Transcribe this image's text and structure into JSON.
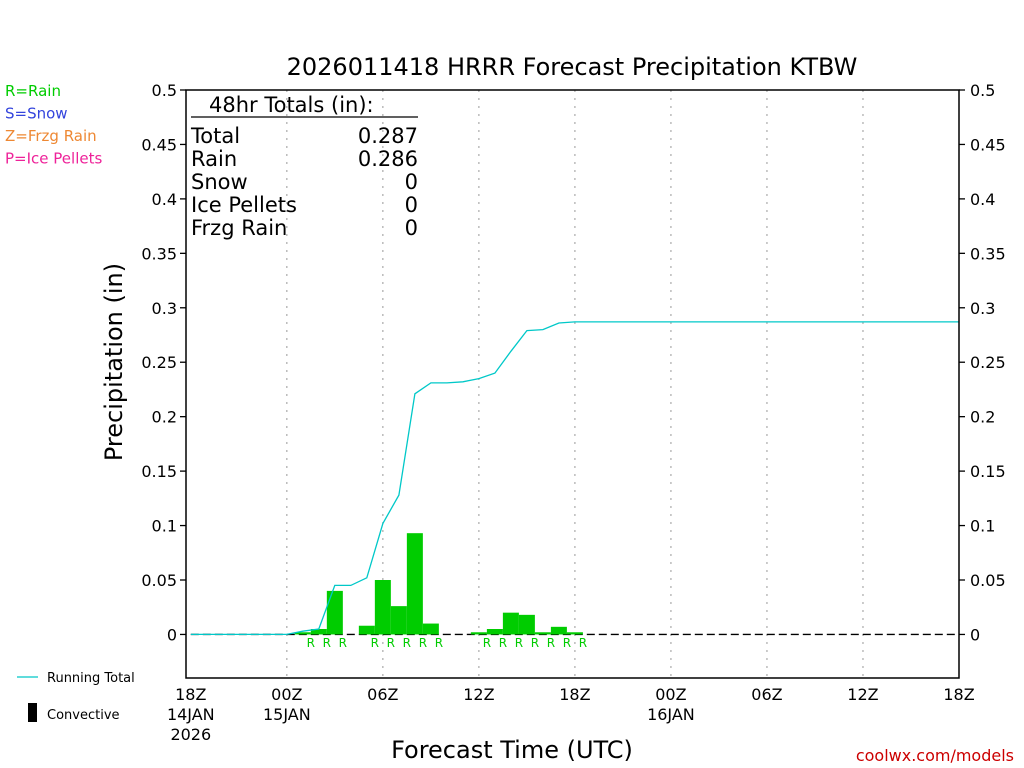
{
  "chart_data": {
    "type": "bar",
    "title": "2026011418 HRRR Forecast Precipitation KTBW",
    "xlabel": "Forecast Time (UTC)",
    "ylabel": "Precipitation (in)",
    "ylim": [
      -0.04,
      0.5
    ],
    "xlim": [
      -0.3,
      48
    ],
    "y_ticks": [
      "0.5",
      "0.45",
      "0.4",
      "0.35",
      "0.3",
      "0.25",
      "0.2",
      "0.15",
      "0.1",
      "0.05",
      "0"
    ],
    "y_tick_values": [
      0.5,
      0.45,
      0.4,
      0.35,
      0.3,
      0.25,
      0.2,
      0.15,
      0.1,
      0.05,
      0
    ],
    "x_ticks": [
      {
        "hour": 0,
        "label": "18Z",
        "date": "14JAN",
        "year": "2026"
      },
      {
        "hour": 6,
        "label": "00Z",
        "date": "15JAN",
        "year": ""
      },
      {
        "hour": 12,
        "label": "06Z",
        "date": "",
        "year": ""
      },
      {
        "hour": 18,
        "label": "12Z",
        "date": "",
        "year": ""
      },
      {
        "hour": 24,
        "label": "18Z",
        "date": "",
        "year": ""
      },
      {
        "hour": 30,
        "label": "00Z",
        "date": "16JAN",
        "year": ""
      },
      {
        "hour": 36,
        "label": "06Z",
        "date": "",
        "year": ""
      },
      {
        "hour": 42,
        "label": "12Z",
        "date": "",
        "year": ""
      },
      {
        "hour": 48,
        "label": "18Z",
        "date": "",
        "year": ""
      }
    ],
    "grid": "vertical dotted at 6-hour intervals",
    "hourly_precip": {
      "name": "Convective",
      "hours": [
        7,
        8,
        9,
        11,
        12,
        13,
        14,
        15,
        18,
        19,
        20,
        21,
        22,
        23,
        24
      ],
      "values": [
        0.002,
        0.005,
        0.04,
        0.008,
        0.05,
        0.026,
        0.093,
        0.01,
        0.002,
        0.005,
        0.02,
        0.018,
        0.002,
        0.007,
        0.002
      ],
      "color": "#00cc00"
    },
    "running_total": {
      "name": "Running Total",
      "color": "#00c8c8",
      "x": [
        0,
        5,
        6,
        7,
        8,
        9,
        10,
        11,
        12,
        13,
        14,
        15,
        16,
        17,
        18,
        19,
        20,
        21,
        22,
        23,
        24,
        48
      ],
      "y": [
        0,
        0,
        0,
        0.003,
        0.005,
        0.045,
        0.045,
        0.052,
        0.102,
        0.128,
        0.221,
        0.231,
        0.231,
        0.232,
        0.235,
        0.24,
        0.26,
        0.279,
        0.28,
        0.286,
        0.287,
        0.287
      ]
    },
    "precip_type_markers": {
      "hours": [
        8,
        9,
        10,
        12,
        13,
        14,
        15,
        16,
        19,
        20,
        21,
        22,
        23,
        24,
        25
      ],
      "letter": "R"
    }
  },
  "totals_box": {
    "heading": "48hr Totals (in):",
    "rows": [
      {
        "label": "Total",
        "value": "0.287"
      },
      {
        "label": "Rain",
        "value": "0.286"
      },
      {
        "label": "Snow",
        "value": "0"
      },
      {
        "label": "Ice Pellets",
        "value": "0"
      },
      {
        "label": "Frzg Rain",
        "value": "0"
      }
    ]
  },
  "type_legend": [
    {
      "text": "R=Rain",
      "color": "#00cc00"
    },
    {
      "text": "S=Snow",
      "color": "#3344dd"
    },
    {
      "text": "Z=Frzg Rain",
      "color": "#ee8833"
    },
    {
      "text": "P=Ice Pellets",
      "color": "#ee2299"
    }
  ],
  "series_legend": {
    "line": "Running Total",
    "bar": "Convective"
  },
  "credit": "coolwx.com/models"
}
